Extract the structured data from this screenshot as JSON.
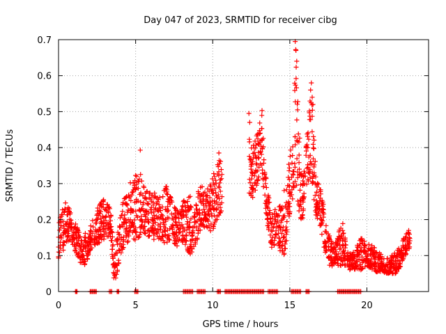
{
  "chart_data": {
    "type": "scatter",
    "title": "Day 047 of 2023, SRMTID for receiver cibg",
    "xlabel": "GPS time / hours",
    "ylabel": "SRMTID / TECUs",
    "xlim": [
      0,
      24
    ],
    "ylim": [
      0,
      0.7
    ],
    "xticks": [
      0,
      5,
      10,
      15,
      20
    ],
    "xtick_labels": [
      "0",
      "5",
      "10",
      "15",
      "20"
    ],
    "yticks": [
      0,
      0.1,
      0.2,
      0.3,
      0.4,
      0.5,
      0.6,
      0.7
    ],
    "ytick_labels": [
      "0",
      "0.1",
      "0.2",
      "0.3",
      "0.4",
      "0.5",
      "0.6",
      "0.7"
    ],
    "grid": true,
    "marker": "+",
    "color": "#ff0000",
    "series": [
      {
        "name": "SRMTID",
        "envelope": [
          [
            0.0,
            0.08,
            0.2
          ],
          [
            0.2,
            0.1,
            0.22
          ],
          [
            0.4,
            0.12,
            0.25
          ],
          [
            0.6,
            0.14,
            0.24
          ],
          [
            0.8,
            0.13,
            0.22
          ],
          [
            1.0,
            0.12,
            0.2
          ],
          [
            1.2,
            0.1,
            0.18
          ],
          [
            1.4,
            0.08,
            0.16
          ],
          [
            1.6,
            0.07,
            0.15
          ],
          [
            1.8,
            0.08,
            0.17
          ],
          [
            2.0,
            0.1,
            0.19
          ],
          [
            2.2,
            0.12,
            0.2
          ],
          [
            2.8,
            0.14,
            0.26
          ],
          [
            3.1,
            0.15,
            0.25
          ],
          [
            3.4,
            0.15,
            0.23
          ],
          [
            3.6,
            0.02,
            0.1
          ],
          [
            3.8,
            0.05,
            0.15
          ],
          [
            4.0,
            0.1,
            0.22
          ],
          [
            4.3,
            0.13,
            0.28
          ],
          [
            4.6,
            0.14,
            0.3
          ],
          [
            4.9,
            0.14,
            0.32
          ],
          [
            5.2,
            0.15,
            0.36
          ],
          [
            5.5,
            0.16,
            0.3
          ],
          [
            5.8,
            0.15,
            0.28
          ],
          [
            6.1,
            0.14,
            0.27
          ],
          [
            6.4,
            0.15,
            0.28
          ],
          [
            6.7,
            0.14,
            0.27
          ],
          [
            7.0,
            0.13,
            0.3
          ],
          [
            7.3,
            0.14,
            0.26
          ],
          [
            7.6,
            0.12,
            0.24
          ],
          [
            7.9,
            0.14,
            0.25
          ],
          [
            8.2,
            0.13,
            0.26
          ],
          [
            8.5,
            0.1,
            0.27
          ],
          [
            8.8,
            0.12,
            0.24
          ],
          [
            9.2,
            0.17,
            0.3
          ],
          [
            9.6,
            0.18,
            0.28
          ],
          [
            10.0,
            0.16,
            0.32
          ],
          [
            10.3,
            0.2,
            0.36
          ],
          [
            10.6,
            0.22,
            0.38
          ],
          [
            12.3,
            0.28,
            0.49
          ],
          [
            12.6,
            0.25,
            0.4
          ],
          [
            12.9,
            0.3,
            0.45
          ],
          [
            13.2,
            0.33,
            0.5
          ],
          [
            13.5,
            0.2,
            0.3
          ],
          [
            13.8,
            0.12,
            0.22
          ],
          [
            14.1,
            0.13,
            0.24
          ],
          [
            14.4,
            0.11,
            0.24
          ],
          [
            14.7,
            0.1,
            0.3
          ],
          [
            14.9,
            0.2,
            0.35
          ],
          [
            15.2,
            0.25,
            0.45
          ],
          [
            15.4,
            0.3,
            0.69
          ],
          [
            15.6,
            0.22,
            0.5
          ],
          [
            15.8,
            0.18,
            0.3
          ],
          [
            16.1,
            0.3,
            0.45
          ],
          [
            16.4,
            0.32,
            0.58
          ],
          [
            16.7,
            0.2,
            0.32
          ],
          [
            17.0,
            0.18,
            0.3
          ],
          [
            17.3,
            0.1,
            0.2
          ],
          [
            17.6,
            0.07,
            0.15
          ],
          [
            18.0,
            0.07,
            0.14
          ],
          [
            18.4,
            0.07,
            0.2
          ],
          [
            18.8,
            0.06,
            0.1
          ],
          [
            19.2,
            0.06,
            0.12
          ],
          [
            19.6,
            0.06,
            0.15
          ],
          [
            20.0,
            0.07,
            0.14
          ],
          [
            20.4,
            0.06,
            0.13
          ],
          [
            20.8,
            0.05,
            0.11
          ],
          [
            21.2,
            0.05,
            0.09
          ],
          [
            21.6,
            0.05,
            0.1
          ],
          [
            21.9,
            0.05,
            0.11
          ],
          [
            22.2,
            0.07,
            0.13
          ],
          [
            22.5,
            0.1,
            0.16
          ],
          [
            22.8,
            0.12,
            0.18
          ]
        ],
        "outliers": [
          [
            5.3,
            0.393
          ],
          [
            13.2,
            0.503
          ],
          [
            15.35,
            0.695
          ],
          [
            15.4,
            0.67
          ],
          [
            15.45,
            0.64
          ],
          [
            16.4,
            0.58
          ],
          [
            16.35,
            0.56
          ],
          [
            16.45,
            0.54
          ],
          [
            12.35,
            0.495
          ],
          [
            12.4,
            0.47
          ],
          [
            10.4,
            0.385
          ],
          [
            16.5,
            0.52
          ]
        ],
        "zero_ranges": [
          [
            1.1,
            1.2
          ],
          [
            2.05,
            2.45
          ],
          [
            3.3,
            3.45
          ],
          [
            3.8,
            3.9
          ],
          [
            4.95,
            5.15
          ],
          [
            8.1,
            8.7
          ],
          [
            9.0,
            9.5
          ],
          [
            10.3,
            10.5
          ],
          [
            10.8,
            13.3
          ],
          [
            13.6,
            14.2
          ],
          [
            15.1,
            15.7
          ],
          [
            16.05,
            16.25
          ],
          [
            18.1,
            19.6
          ]
        ]
      }
    ]
  }
}
